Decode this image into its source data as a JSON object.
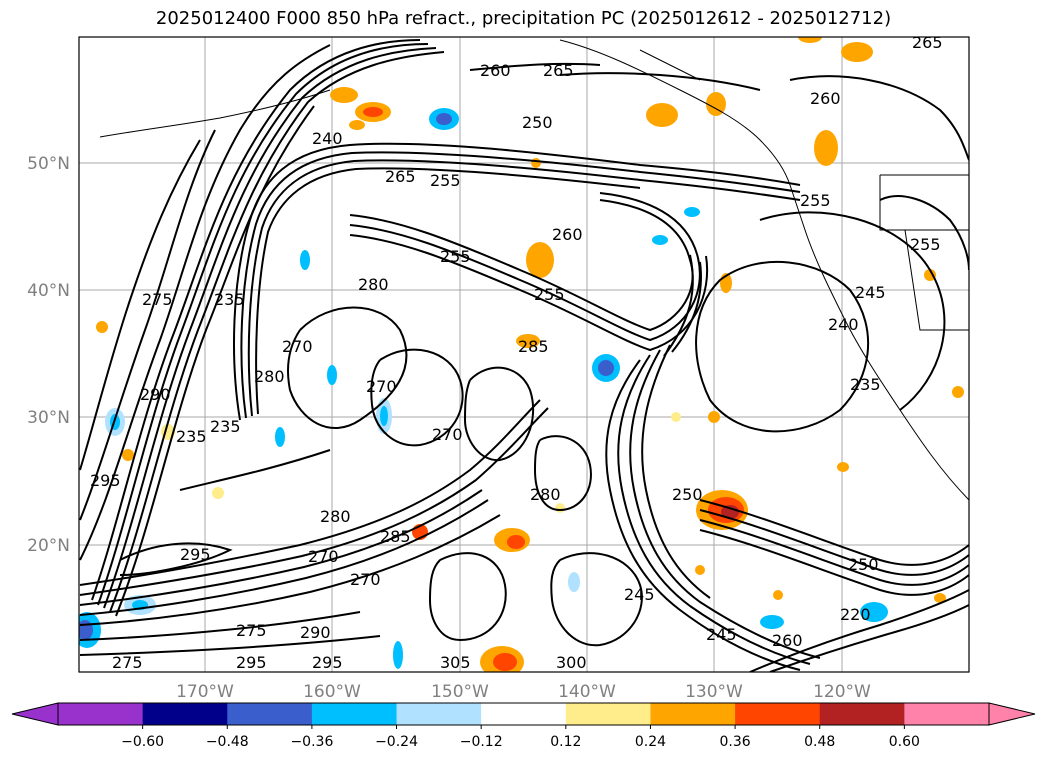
{
  "title": "2025012400 F000 850 hPa refract., precipitation PC (2025012612 - 2025012712)",
  "lat_labels": [
    "50°N",
    "40°N",
    "30°N",
    "20°N"
  ],
  "lon_labels": [
    "170°W",
    "160°W",
    "150°W",
    "140°W",
    "130°W",
    "120°W"
  ],
  "colorbar": {
    "colors": [
      "#9932cc",
      "#00008b",
      "#3a5fcd",
      "#00bfff",
      "#b0e2ff",
      "#ffffff",
      "#ffec8b",
      "#ffa500",
      "#ff4500",
      "#b22222",
      "#ff82ab"
    ],
    "tick_labels": [
      "−0.60",
      "−0.48",
      "−0.36",
      "−0.24",
      "−0.12",
      "0.12",
      "0.24",
      "0.36",
      "0.48",
      "0.60"
    ]
  },
  "contour_labels": [
    "265",
    "260",
    "265",
    "250",
    "240",
    "265",
    "255",
    "260",
    "255",
    "260",
    "255",
    "255",
    "245",
    "240",
    "235",
    "275",
    "290",
    "235",
    "280",
    "270",
    "280",
    "270",
    "270",
    "285",
    "295",
    "235",
    "235",
    "280",
    "285",
    "250",
    "245",
    "245",
    "270",
    "270",
    "295",
    "305",
    "300",
    "280",
    "275",
    "295",
    "290",
    "295",
    "275",
    "220",
    "250",
    "255",
    "260"
  ]
}
